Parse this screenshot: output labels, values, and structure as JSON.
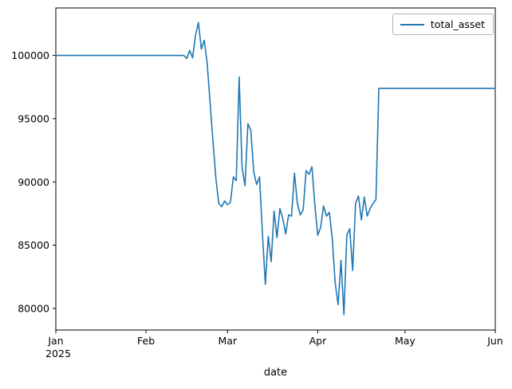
{
  "chart_data": {
    "type": "line",
    "title": "",
    "xlabel": "date",
    "ylabel": "",
    "legend": [
      "total_asset"
    ],
    "legend_position": "upper right",
    "grid": false,
    "line_color": "#1f77b4",
    "axis_color": "#000000",
    "background_color": "#ffffff",
    "x_unit": "days_since_2025-01-01",
    "xlim_days": [
      0,
      151
    ],
    "ylim": [
      78300,
      103750
    ],
    "x_ticks": [
      {
        "day": 0,
        "label": "Jan",
        "sublabel": "2025"
      },
      {
        "day": 31,
        "label": "Feb",
        "sublabel": ""
      },
      {
        "day": 59,
        "label": "Mar",
        "sublabel": ""
      },
      {
        "day": 90,
        "label": "Apr",
        "sublabel": ""
      },
      {
        "day": 120,
        "label": "May",
        "sublabel": ""
      },
      {
        "day": 151,
        "label": "Jun",
        "sublabel": ""
      }
    ],
    "y_ticks": [
      80000,
      85000,
      90000,
      95000,
      100000
    ],
    "series": [
      {
        "name": "total_asset",
        "points": [
          [
            0,
            100000
          ],
          [
            44,
            100000
          ],
          [
            45,
            99750
          ],
          [
            46,
            100400
          ],
          [
            47,
            99800
          ],
          [
            48,
            101600
          ],
          [
            49,
            102600
          ],
          [
            50,
            100500
          ],
          [
            51,
            101200
          ],
          [
            52,
            99400
          ],
          [
            53,
            96300
          ],
          [
            54,
            93200
          ],
          [
            55,
            90300
          ],
          [
            56,
            88300
          ],
          [
            57,
            88050
          ],
          [
            58,
            88500
          ],
          [
            59,
            88200
          ],
          [
            60,
            88400
          ],
          [
            61,
            90400
          ],
          [
            62,
            90100
          ],
          [
            63,
            98300
          ],
          [
            64,
            91100
          ],
          [
            65,
            89700
          ],
          [
            66,
            94600
          ],
          [
            67,
            94100
          ],
          [
            68,
            90800
          ],
          [
            69,
            89800
          ],
          [
            70,
            90400
          ],
          [
            71,
            85900
          ],
          [
            72,
            81900
          ],
          [
            73,
            85700
          ],
          [
            74,
            83700
          ],
          [
            75,
            87700
          ],
          [
            76,
            85600
          ],
          [
            77,
            87900
          ],
          [
            78,
            87100
          ],
          [
            79,
            85900
          ],
          [
            80,
            87400
          ],
          [
            81,
            87300
          ],
          [
            82,
            90700
          ],
          [
            83,
            88300
          ],
          [
            84,
            87400
          ],
          [
            85,
            87800
          ],
          [
            86,
            90900
          ],
          [
            87,
            90600
          ],
          [
            88,
            91200
          ],
          [
            89,
            88200
          ],
          [
            90,
            85800
          ],
          [
            91,
            86400
          ],
          [
            92,
            88100
          ],
          [
            93,
            87300
          ],
          [
            94,
            87600
          ],
          [
            95,
            85500
          ],
          [
            96,
            82000
          ],
          [
            97,
            80300
          ],
          [
            98,
            83800
          ],
          [
            99,
            79500
          ],
          [
            100,
            85800
          ],
          [
            101,
            86300
          ],
          [
            102,
            83000
          ],
          [
            103,
            88300
          ],
          [
            104,
            88900
          ],
          [
            105,
            87000
          ],
          [
            106,
            88800
          ],
          [
            107,
            87300
          ],
          [
            108,
            87900
          ],
          [
            109,
            88300
          ],
          [
            110,
            88600
          ],
          [
            111,
            97400
          ],
          [
            151,
            97400
          ]
        ]
      }
    ]
  }
}
